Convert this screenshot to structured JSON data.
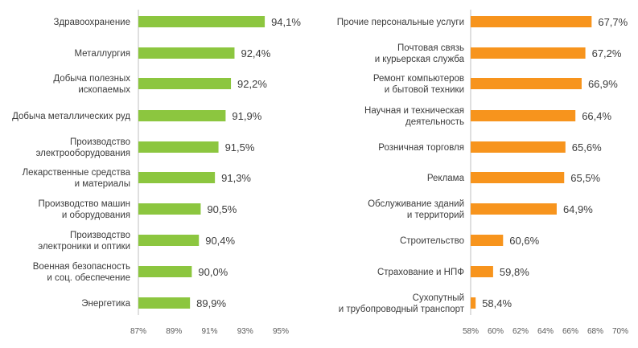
{
  "colors": {
    "left_bar": "#8cc63f",
    "right_bar": "#f7941d",
    "axis_line": "#bfbfbf",
    "label_text": "#3c3c3c",
    "tick_text": "#595959"
  },
  "chart_data": [
    {
      "type": "bar",
      "orientation": "horizontal",
      "title": "",
      "categories": [
        [
          "Здравоохранение"
        ],
        [
          "Металлургия"
        ],
        [
          "Добыча полезных",
          "ископаемых"
        ],
        [
          "Добыча металлических руд"
        ],
        [
          "Производство",
          "электрооборудования"
        ],
        [
          "Лекарственные средства",
          "и материалы"
        ],
        [
          "Производство машин",
          "и оборудования"
        ],
        [
          "Производство",
          "электроники и оптики"
        ],
        [
          "Военная безопасность",
          "и соц. обеспечение"
        ],
        [
          "Энергетика"
        ]
      ],
      "values": [
        94.1,
        92.4,
        92.2,
        91.9,
        91.5,
        91.3,
        90.5,
        90.4,
        90.0,
        89.9
      ],
      "value_labels": [
        "94,1%",
        "92,4%",
        "92,2%",
        "91,9%",
        "91,5%",
        "91,3%",
        "90,5%",
        "90,4%",
        "90,0%",
        "89,9%"
      ],
      "xlim": [
        87,
        95
      ],
      "ticks": [
        87,
        89,
        91,
        93,
        95
      ],
      "tick_labels": [
        "87%",
        "89%",
        "91%",
        "93%",
        "95%"
      ],
      "grid": false,
      "legend": "none"
    },
    {
      "type": "bar",
      "orientation": "horizontal",
      "title": "",
      "categories": [
        [
          "Прочие персональные услуги"
        ],
        [
          "Почтовая связь",
          "и курьерская служба"
        ],
        [
          "Ремонт компьютеров",
          "и бытовой техники"
        ],
        [
          "Научная и техническая",
          "деятельность"
        ],
        [
          "Розничная торговля"
        ],
        [
          "Реклама"
        ],
        [
          "Обслуживание зданий",
          "и территорий"
        ],
        [
          "Строительство"
        ],
        [
          "Страхование и НПФ"
        ],
        [
          "Сухопутный",
          "и трубопроводный транспорт"
        ]
      ],
      "values": [
        67.7,
        67.2,
        66.9,
        66.4,
        65.6,
        65.5,
        64.9,
        60.6,
        59.8,
        58.4
      ],
      "value_labels": [
        "67,7%",
        "67,2%",
        "66,9%",
        "66,4%",
        "65,6%",
        "65,5%",
        "64,9%",
        "60,6%",
        "59,8%",
        "58,4%"
      ],
      "xlim": [
        58,
        70
      ],
      "ticks": [
        58,
        60,
        62,
        64,
        66,
        68,
        70
      ],
      "tick_labels": [
        "58%",
        "60%",
        "62%",
        "64%",
        "66%",
        "68%",
        "70%"
      ],
      "grid": false,
      "legend": "none"
    }
  ]
}
